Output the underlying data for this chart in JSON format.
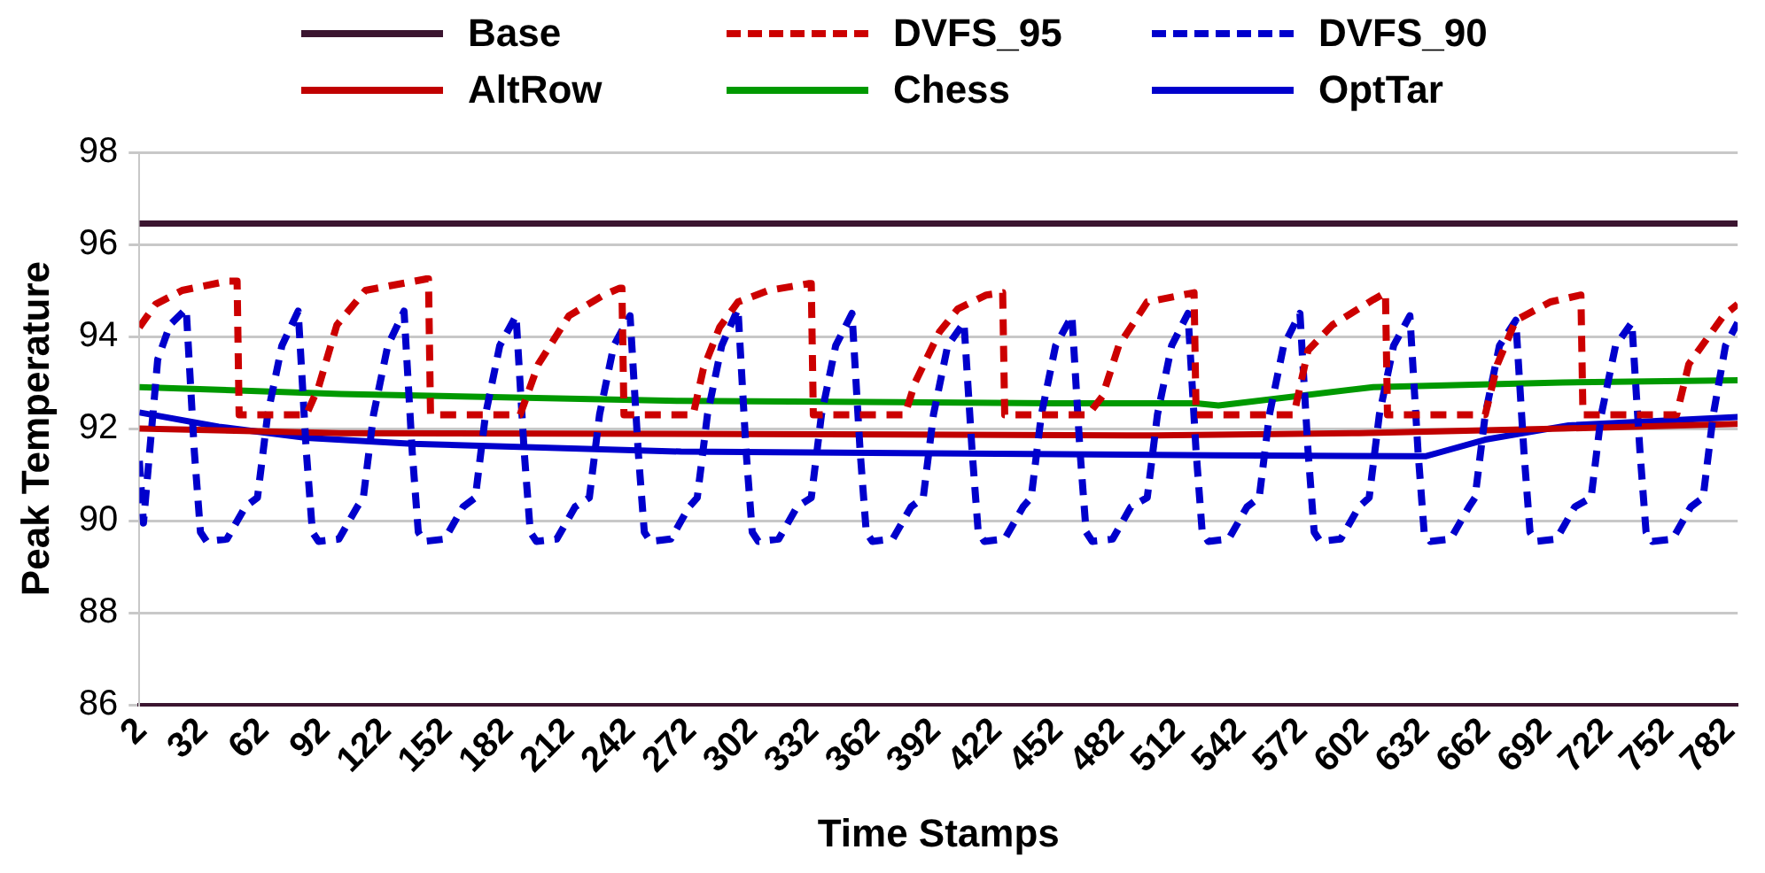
{
  "chart_data": {
    "type": "line",
    "xlabel": "Time Stamps",
    "ylabel": "Peak Temperature",
    "xlim": [
      1,
      786
    ],
    "xticks": [
      2,
      32,
      62,
      92,
      122,
      152,
      182,
      212,
      242,
      272,
      302,
      332,
      362,
      392,
      422,
      452,
      482,
      512,
      542,
      572,
      602,
      632,
      662,
      692,
      722,
      752,
      782
    ],
    "ylim": [
      86,
      98
    ],
    "yticks": [
      86,
      88,
      90,
      92,
      94,
      96,
      98
    ],
    "grid": "y",
    "legend": "top",
    "marker": "none",
    "series": [
      {
        "name": "Base",
        "color": "#3b1530",
        "line_style": "solid",
        "x": [
          1,
          200,
          400,
          600,
          786
        ],
        "values": [
          96.45,
          96.45,
          96.45,
          96.45,
          96.45
        ]
      },
      {
        "name": "DVFS_95",
        "color": "#cc0000",
        "line_style": "dashed",
        "x": [
          1,
          9,
          22,
          44,
          49,
          50,
          83,
          89,
          98,
          112,
          142,
          143,
          144,
          188,
          197,
          212,
          229,
          237,
          238,
          239,
          273,
          278,
          286,
          295,
          310,
          330,
          331,
          332,
          377,
          382,
          394,
          403,
          417,
          425,
          426,
          467,
          474,
          482,
          496,
          519,
          520,
          568,
          575,
          587,
          607,
          613,
          614,
          662,
          668,
          677,
          694,
          709,
          710,
          756,
          762,
          779,
          786
        ],
        "values": [
          94.2,
          94.7,
          95.0,
          95.2,
          95.2,
          92.3,
          92.3,
          92.9,
          94.25,
          95.0,
          95.25,
          95.25,
          92.3,
          92.3,
          93.4,
          94.45,
          94.9,
          95.05,
          95.05,
          92.3,
          92.3,
          93.3,
          94.2,
          94.75,
          95.0,
          95.15,
          95.15,
          92.3,
          92.3,
          93.0,
          94.1,
          94.6,
          94.9,
          94.95,
          92.3,
          92.3,
          92.7,
          93.8,
          94.75,
          94.95,
          92.3,
          92.3,
          93.7,
          94.25,
          94.8,
          94.95,
          92.3,
          92.3,
          93.4,
          94.35,
          94.75,
          94.9,
          92.3,
          92.3,
          93.4,
          94.45,
          94.7
        ]
      },
      {
        "name": "DVFS_90",
        "color": "#0000cc",
        "line_style": "dashed",
        "x": [
          1,
          3,
          10,
          16,
          24,
          28,
          31,
          34,
          44,
          53,
          59,
          64,
          71,
          79,
          83,
          86,
          89,
          99,
          108,
          111,
          116,
          123,
          131,
          135,
          138,
          141,
          151,
          160,
          166,
          171,
          178,
          186,
          190,
          193,
          196,
          206,
          215,
          222,
          227,
          234,
          242,
          246,
          249,
          252,
          262,
          271,
          275,
          280,
          287,
          295,
          299,
          302,
          305,
          315,
          324,
          331,
          336,
          343,
          351,
          355,
          358,
          361,
          371,
          380,
          386,
          391,
          398,
          406,
          410,
          413,
          416,
          426,
          435,
          439,
          444,
          451,
          459,
          463,
          466,
          469,
          479,
          488,
          496,
          501,
          508,
          516,
          520,
          523,
          526,
          536,
          545,
          551,
          556,
          563,
          571,
          575,
          578,
          581,
          591,
          600,
          605,
          610,
          617,
          625,
          629,
          632,
          635,
          645,
          654,
          657,
          662,
          669,
          677,
          681,
          684,
          687,
          697,
          706,
          714,
          719,
          726,
          734,
          738,
          741,
          744,
          754,
          763,
          769,
          774,
          780,
          786
        ],
        "values": [
          91.3,
          89.95,
          93.5,
          94.25,
          94.6,
          91.5,
          89.75,
          89.55,
          89.6,
          90.3,
          90.5,
          92.3,
          93.8,
          94.55,
          91.5,
          89.75,
          89.55,
          89.6,
          90.3,
          90.5,
          92.3,
          93.8,
          94.55,
          91.5,
          89.75,
          89.55,
          89.6,
          90.3,
          90.5,
          92.3,
          93.8,
          94.45,
          91.5,
          89.75,
          89.55,
          89.6,
          90.3,
          90.5,
          92.3,
          93.8,
          94.45,
          91.5,
          89.75,
          89.55,
          89.6,
          90.3,
          90.5,
          92.3,
          93.8,
          94.6,
          91.5,
          89.75,
          89.55,
          89.6,
          90.3,
          90.5,
          92.3,
          93.8,
          94.5,
          91.5,
          89.75,
          89.55,
          89.6,
          90.3,
          90.5,
          92.3,
          93.8,
          94.3,
          91.5,
          89.75,
          89.55,
          89.6,
          90.3,
          90.5,
          92.3,
          93.8,
          94.45,
          91.5,
          89.75,
          89.55,
          89.6,
          90.3,
          90.5,
          92.3,
          93.8,
          94.5,
          91.5,
          89.75,
          89.55,
          89.6,
          90.3,
          90.5,
          92.3,
          93.8,
          94.5,
          91.5,
          89.75,
          89.55,
          89.6,
          90.3,
          90.5,
          92.3,
          93.8,
          94.45,
          91.5,
          89.75,
          89.55,
          89.6,
          90.3,
          90.5,
          92.3,
          93.8,
          94.35,
          91.5,
          89.75,
          89.55,
          89.6,
          90.3,
          90.5,
          92.3,
          93.8,
          94.3,
          91.5,
          89.75,
          89.55,
          89.6,
          90.3,
          90.5,
          92.3,
          93.8,
          94.3
        ]
      },
      {
        "name": "AltRow",
        "color": "#c00000",
        "line_style": "solid",
        "x": [
          1,
          100,
          300,
          500,
          600,
          700,
          786
        ],
        "values": [
          92.0,
          91.9,
          91.88,
          91.85,
          91.9,
          92.0,
          92.1
        ]
      },
      {
        "name": "Chess",
        "color": "#009900",
        "line_style": "solid",
        "x": [
          1,
          100,
          267,
          450,
          520,
          531,
          607,
          700,
          786
        ],
        "values": [
          92.9,
          92.75,
          92.6,
          92.55,
          92.55,
          92.5,
          92.9,
          93.0,
          93.05
        ]
      },
      {
        "name": "OptTar",
        "color": "#0000cc",
        "line_style": "solid",
        "x": [
          1,
          40,
          83,
          135,
          267,
          529,
          625,
          633,
          662,
          703,
          786
        ],
        "values": [
          92.35,
          92.04,
          91.8,
          91.67,
          91.5,
          91.42,
          91.4,
          91.4,
          91.76,
          92.07,
          92.25
        ]
      }
    ]
  }
}
